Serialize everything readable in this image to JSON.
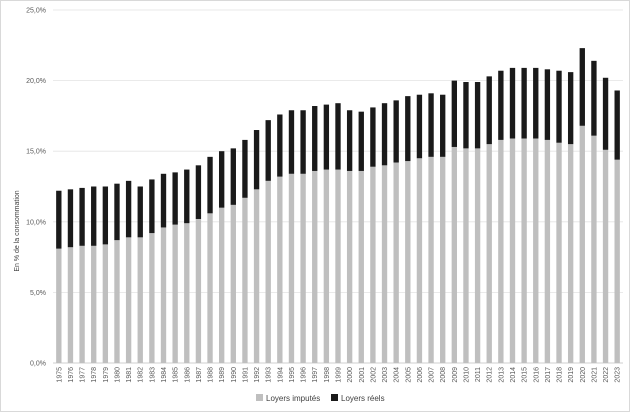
{
  "chart_data": {
    "type": "bar",
    "stacked": true,
    "title": "",
    "xlabel": "",
    "ylabel": "En % de la consommation",
    "ylim": [
      0,
      25
    ],
    "yticks": [
      "0,0%",
      "5,0%",
      "10,0%",
      "15,0%",
      "20,0%",
      "25,0%"
    ],
    "grid": true,
    "legend_position": "bottom",
    "categories": [
      "1975",
      "1976",
      "1977",
      "1978",
      "1979",
      "1980",
      "1981",
      "1982",
      "1983",
      "1984",
      "1985",
      "1986",
      "1987",
      "1988",
      "1989",
      "1990",
      "1991",
      "1992",
      "1993",
      "1994",
      "1995",
      "1996",
      "1997",
      "1998",
      "1999",
      "2000",
      "2001",
      "2002",
      "2003",
      "2004",
      "2005",
      "2006",
      "2007",
      "2008",
      "2009",
      "2010",
      "2011",
      "2012",
      "2013",
      "2014",
      "2015",
      "2016",
      "2017",
      "2018",
      "2019",
      "2020",
      "2021",
      "2022",
      "2023"
    ],
    "series": [
      {
        "name": "Loyers imputés",
        "color": "#bfbfbf",
        "values": [
          8.1,
          8.2,
          8.3,
          8.3,
          8.4,
          8.7,
          8.9,
          8.9,
          9.2,
          9.6,
          9.8,
          9.9,
          10.2,
          10.6,
          11.0,
          11.2,
          11.7,
          12.3,
          12.9,
          13.2,
          13.4,
          13.4,
          13.6,
          13.7,
          13.7,
          13.6,
          13.6,
          13.9,
          14.0,
          14.2,
          14.3,
          14.5,
          14.6,
          14.6,
          15.3,
          15.2,
          15.2,
          15.5,
          15.8,
          15.9,
          15.9,
          15.9,
          15.8,
          15.6,
          15.5,
          16.8,
          16.1,
          15.1,
          14.4
        ]
      },
      {
        "name": "Loyers réels",
        "color": "#1a1a1a",
        "values": [
          4.1,
          4.1,
          4.1,
          4.2,
          4.1,
          4.0,
          4.0,
          3.6,
          3.8,
          3.8,
          3.7,
          3.8,
          3.8,
          4.0,
          4.0,
          4.0,
          4.1,
          4.2,
          4.3,
          4.4,
          4.5,
          4.5,
          4.6,
          4.6,
          4.7,
          4.3,
          4.2,
          4.2,
          4.4,
          4.4,
          4.6,
          4.5,
          4.5,
          4.4,
          4.7,
          4.7,
          4.7,
          4.8,
          4.9,
          5.0,
          5.0,
          5.0,
          5.0,
          5.1,
          5.1,
          5.5,
          5.3,
          5.1,
          4.9
        ]
      }
    ]
  }
}
